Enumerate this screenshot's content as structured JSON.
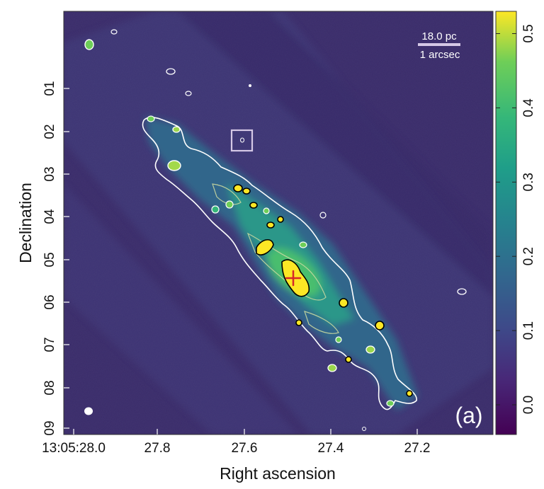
{
  "figure": {
    "panel_label": "(a)",
    "scalebar": {
      "physical": "18.0 pc",
      "angular": "1 arcsec"
    },
    "x_axis": {
      "title": "Right ascension",
      "ticks": [
        "13:05:28.0",
        "27.8",
        "27.6",
        "27.4",
        "27.2"
      ]
    },
    "y_axis": {
      "title": "Declination",
      "ticks": [
        "01",
        "02",
        "03",
        "04",
        "05",
        "06",
        "07",
        "08",
        "09"
      ]
    },
    "colorbar": {
      "colormap": "viridis",
      "range": [
        -0.04,
        0.53
      ],
      "ticks": [
        "0.0",
        "0.1",
        "0.2",
        "0.3",
        "0.4",
        "0.5"
      ],
      "tick_values": [
        0.0,
        0.1,
        0.2,
        0.3,
        0.4,
        0.5
      ]
    },
    "markers": {
      "peak": "red-cross",
      "box": "white-square",
      "beam": "white-ellipse"
    },
    "colors": {
      "background": "#3d2a6c",
      "contour": "#ffffff",
      "inner_contour": "#000000",
      "peak_marker": "#d62728",
      "emission_peak": "#fde725"
    }
  }
}
